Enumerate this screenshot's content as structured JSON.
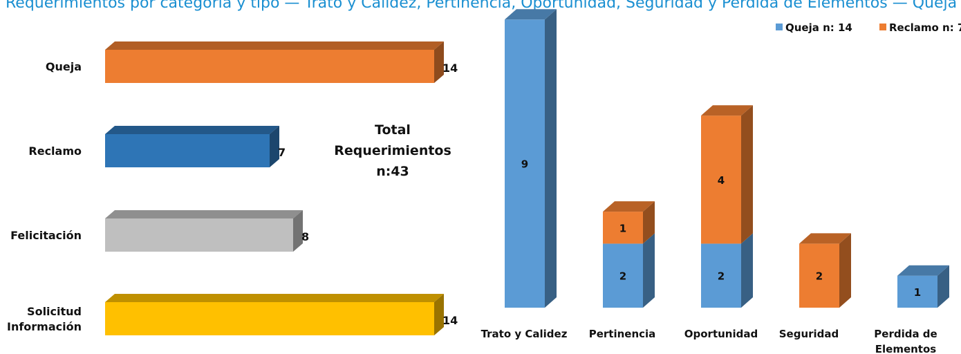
{
  "banner_text": "Requerimientos por categoría y tipo — Trato y Calidez, Pertinencia, Oportunidad, Seguridad y Perdida de Elementos — Queja y Reclamo",
  "colors": {
    "queja": "#5b9bd5",
    "reclamo": "#ed7d31",
    "reclamo_dark": "#2e75b6",
    "felicitacion": "#bfbfbf",
    "solicitud": "#ffc000"
  },
  "chart_data": [
    {
      "type": "bar",
      "orientation": "horizontal",
      "categories": [
        "Queja",
        "Reclamo",
        "Felicitación",
        "Solicitud Información"
      ],
      "values": [
        14,
        7,
        8,
        14
      ],
      "value_labels": [
        "14",
        "7",
        "8",
        "14"
      ],
      "colors": [
        "#ed7d31",
        "#2e75b6",
        "#bfbfbf",
        "#ffc000"
      ],
      "annotation": [
        "Total",
        "Requerimientos",
        "n:43"
      ],
      "xlim": [
        0,
        14
      ],
      "grid": false
    },
    {
      "type": "bar",
      "stacked": true,
      "categories": [
        "Trato y Calidez",
        "Pertinencia",
        "Oportunidad",
        "Seguridad",
        "Perdida de Elementos"
      ],
      "series": [
        {
          "name": "Queja n: 14",
          "values": [
            9,
            2,
            2,
            0,
            1
          ],
          "color": "#5b9bd5"
        },
        {
          "name": "Reclamo n: 7",
          "values": [
            0,
            1,
            4,
            2,
            0
          ],
          "color": "#ed7d31"
        }
      ],
      "ylim": [
        0,
        9
      ],
      "legend": "top-right",
      "grid": false
    }
  ]
}
